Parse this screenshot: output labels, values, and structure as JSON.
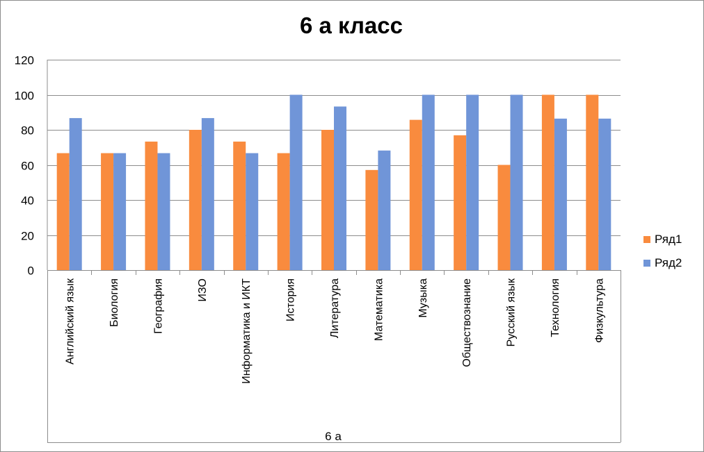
{
  "chart_data": {
    "type": "bar",
    "title": "6 а класс",
    "group_label": "6 а",
    "categories": [
      "Английский язык",
      "Биология",
      "География",
      "ИЗО",
      "Информатика и ИКТ",
      "История",
      "Литература",
      "Математика",
      "Музыка",
      "Обществознание",
      "Русский язык",
      "Технология",
      "Физкультура"
    ],
    "series": [
      {
        "name": "Ряд1",
        "color": "#f98b3e",
        "values": [
          66.7,
          66.7,
          73.3,
          80,
          73.3,
          66.7,
          80,
          57.1,
          85.7,
          76.9,
          60,
          100,
          100
        ]
      },
      {
        "name": "Ряд2",
        "color": "#7095d8",
        "values": [
          86.7,
          66.7,
          66.7,
          86.7,
          66.7,
          100,
          93.3,
          68.2,
          100,
          100,
          100,
          86.4,
          86.4
        ]
      }
    ],
    "ylim": [
      0,
      120
    ],
    "yticks": [
      "0",
      "20",
      "40",
      "60",
      "80",
      "100",
      "120"
    ],
    "grid": true,
    "legend_position": "right"
  }
}
